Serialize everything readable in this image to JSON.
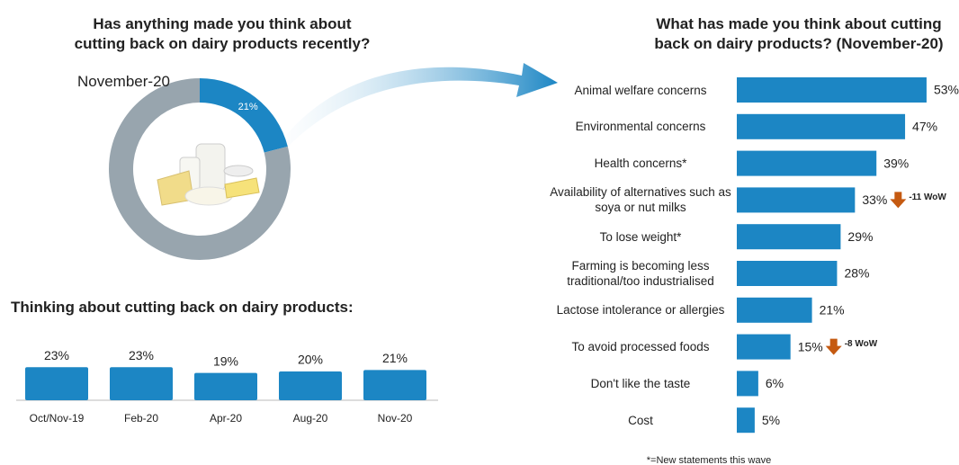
{
  "chart_data": [
    {
      "type": "pie",
      "title": "Has anything made you think about cutting back on dairy products recently?",
      "subtitle": "November-20",
      "values": [
        21,
        79
      ],
      "value_labels": [
        "21%",
        null
      ],
      "colors": [
        "#1c86c4",
        "#98a5ae"
      ],
      "donut": true
    },
    {
      "type": "bar",
      "title": "Thinking about cutting back on dairy products:",
      "categories": [
        "Oct/Nov-19",
        "Feb-20",
        "Apr-20",
        "Aug-20",
        "Nov-20"
      ],
      "values": [
        23,
        23,
        19,
        20,
        21
      ],
      "value_labels": [
        "23%",
        "23%",
        "19%",
        "20%",
        "21%"
      ],
      "color": "#1c86c4"
    },
    {
      "type": "hbar",
      "title": "What has made you think about cutting back on dairy products? (November-20)",
      "categories": [
        "Animal welfare concerns",
        "Environmental concerns",
        "Health concerns*",
        "Availability of alternatives such as soya or nut milks",
        "To lose weight*",
        "Farming is becoming less traditional/too industrialised",
        "Lactose intolerance or allergies",
        "To avoid processed foods",
        "Don't like the taste",
        "Cost"
      ],
      "values": [
        53,
        47,
        39,
        33,
        29,
        28,
        21,
        15,
        6,
        5
      ],
      "value_labels": [
        "53%",
        "47%",
        "39%",
        "33%",
        "29%",
        "28%",
        "21%",
        "15%",
        "6%",
        "5%"
      ],
      "changes": [
        null,
        null,
        null,
        -11,
        null,
        null,
        null,
        -8,
        null,
        null
      ],
      "change_labels": [
        null,
        null,
        null,
        "-11 WoW",
        null,
        null,
        null,
        "-8 WoW",
        null,
        null
      ],
      "change_color": "#c55a11",
      "color": "#1c86c4",
      "footnote": "*=New statements this wave"
    }
  ]
}
